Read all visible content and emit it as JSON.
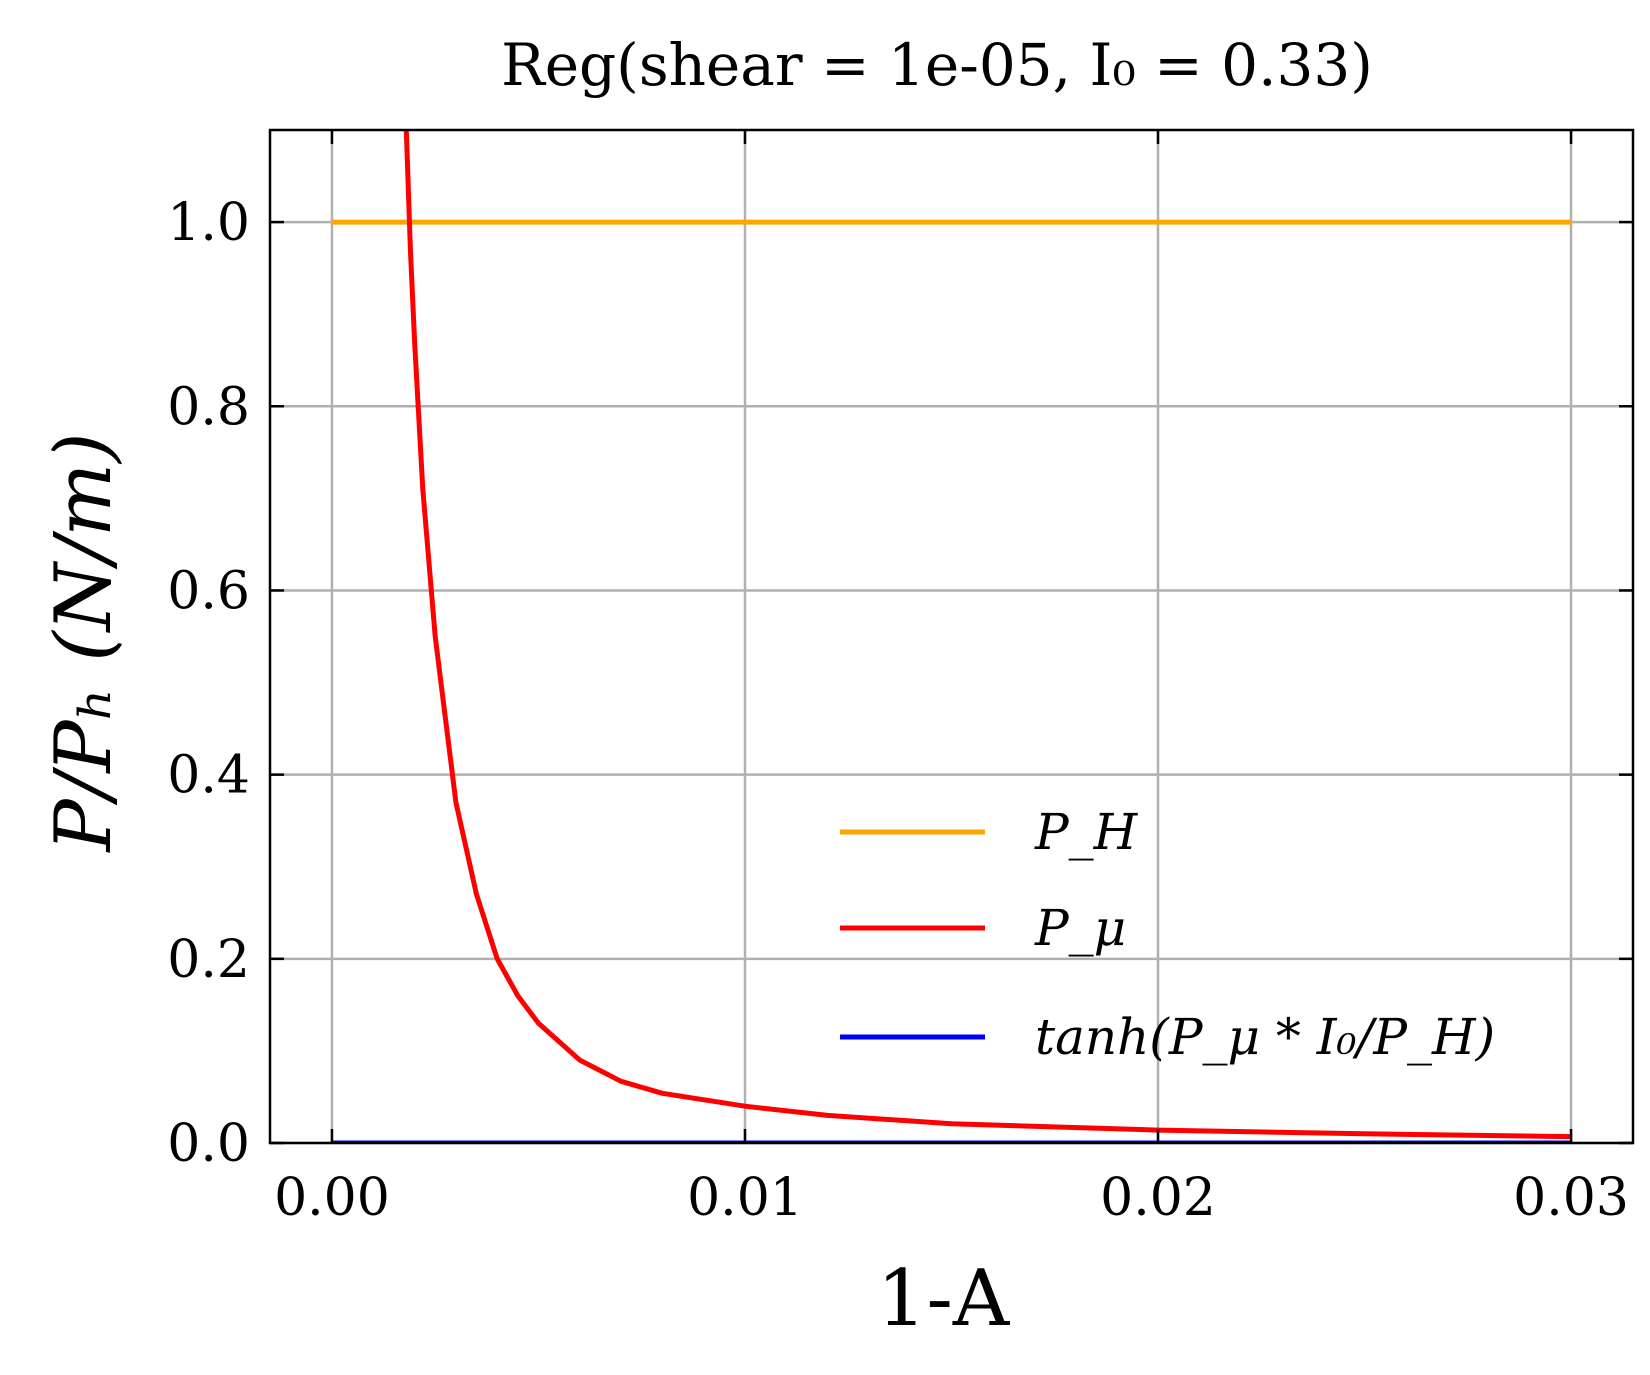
{
  "chart_data": {
    "type": "line",
    "title": "Reg(shear = 1e-05, I₀ = 0.33)",
    "xlabel": "1-A",
    "ylabel": "P/Pₕ (N/m)",
    "xlim": [
      -0.0015,
      0.0315
    ],
    "ylim": [
      0.0,
      1.1
    ],
    "xticks": [
      0.0,
      0.01,
      0.02,
      0.03
    ],
    "xtick_labels": [
      "0.00",
      "0.01",
      "0.02",
      "0.03"
    ],
    "yticks": [
      0.0,
      0.2,
      0.4,
      0.6,
      0.8,
      1.0
    ],
    "ytick_labels": [
      "0.0",
      "0.2",
      "0.4",
      "0.6",
      "0.8",
      "1.0"
    ],
    "grid": true,
    "legend_position": "lower-right",
    "series": [
      {
        "name": "P_H",
        "color": "#FFA500",
        "x": [
          0.0,
          0.03
        ],
        "y": [
          1.0,
          1.0
        ]
      },
      {
        "name": "P_μ",
        "color": "#FF0000",
        "x": [
          0.0018,
          0.0019,
          0.002,
          0.0022,
          0.0025,
          0.003,
          0.0035,
          0.004,
          0.0045,
          0.005,
          0.006,
          0.007,
          0.008,
          0.01,
          0.012,
          0.015,
          0.02,
          0.025,
          0.03
        ],
        "y": [
          1.1,
          0.97,
          0.87,
          0.71,
          0.55,
          0.37,
          0.27,
          0.2,
          0.16,
          0.13,
          0.09,
          0.067,
          0.054,
          0.04,
          0.03,
          0.021,
          0.014,
          0.01,
          0.007
        ]
      },
      {
        "name": "tanh(P_μ * I₀/P_H)",
        "color": "#0000FF",
        "x": [
          0.0,
          0.03
        ],
        "y": [
          0.0,
          0.0
        ]
      }
    ]
  }
}
